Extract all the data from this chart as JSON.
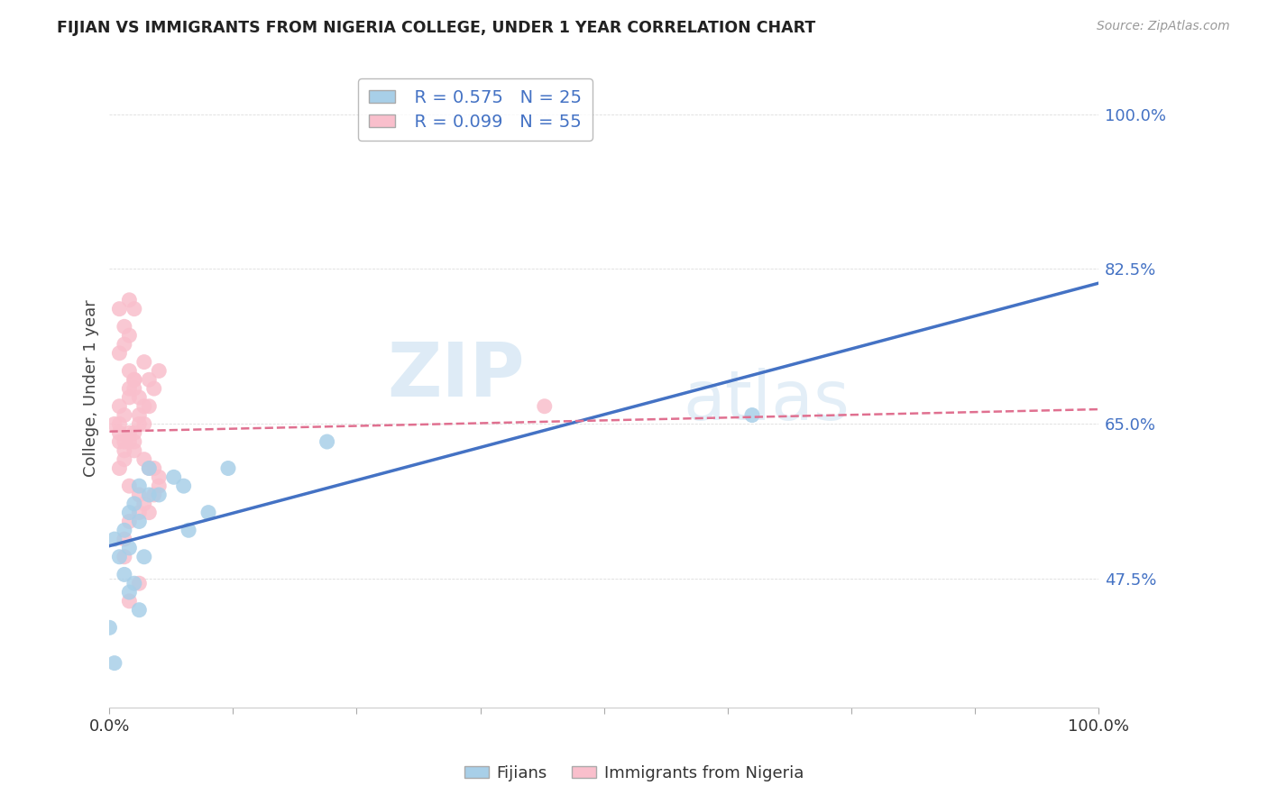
{
  "title": "FIJIAN VS IMMIGRANTS FROM NIGERIA COLLEGE, UNDER 1 YEAR CORRELATION CHART",
  "source": "Source: ZipAtlas.com",
  "ylabel": "College, Under 1 year",
  "xlim": [
    0.0,
    1.0
  ],
  "ylim": [
    0.33,
    1.05
  ],
  "x_ticks": [
    0.0,
    0.5,
    1.0
  ],
  "x_tick_labels": [
    "0.0%",
    "",
    "100.0%"
  ],
  "y_ticks_right": [
    1.0,
    0.825,
    0.65,
    0.475
  ],
  "y_tick_labels_right": [
    "100.0%",
    "82.5%",
    "65.0%",
    "47.5%"
  ],
  "fijian_color": "#a8cfe8",
  "nigeria_color": "#f9bfcc",
  "fijian_line_color": "#4472c4",
  "nigeria_line_color": "#e07090",
  "R_fijian": 0.575,
  "N_fijian": 25,
  "R_nigeria": 0.099,
  "N_nigeria": 55,
  "watermark_zip": "ZIP",
  "watermark_atlas": "atlas",
  "background_color": "#ffffff",
  "grid_color": "#dddddd",
  "title_color": "#222222",
  "axis_label_color": "#444444",
  "right_label_color": "#4472c4",
  "legend_facecolor": "#ffffff",
  "legend_edgecolor": "#aaaaaa",
  "fijian_x": [
    0.005,
    0.01,
    0.02,
    0.025,
    0.03,
    0.04,
    0.015,
    0.02,
    0.03,
    0.04,
    0.015,
    0.025,
    0.035,
    0.02,
    0.03,
    0.05,
    0.065,
    0.075,
    0.08,
    0.1,
    0.12,
    0.22,
    0.65,
    0.0,
    0.005
  ],
  "fijian_y": [
    0.52,
    0.5,
    0.55,
    0.56,
    0.58,
    0.57,
    0.53,
    0.51,
    0.54,
    0.6,
    0.48,
    0.47,
    0.5,
    0.46,
    0.44,
    0.57,
    0.59,
    0.58,
    0.53,
    0.55,
    0.6,
    0.63,
    0.66,
    0.42,
    0.38
  ],
  "nigeria_x": [
    0.005,
    0.01,
    0.015,
    0.01,
    0.02,
    0.025,
    0.01,
    0.015,
    0.02,
    0.03,
    0.02,
    0.025,
    0.035,
    0.025,
    0.01,
    0.015,
    0.02,
    0.025,
    0.035,
    0.03,
    0.04,
    0.02,
    0.03,
    0.035,
    0.04,
    0.05,
    0.045,
    0.025,
    0.01,
    0.015,
    0.03,
    0.04,
    0.05,
    0.045,
    0.035,
    0.02,
    0.015,
    0.01,
    0.02,
    0.025,
    0.035,
    0.04,
    0.05,
    0.045,
    0.03,
    0.02,
    0.015,
    0.015,
    0.02,
    0.025,
    0.01,
    0.015,
    0.44,
    0.02,
    0.03
  ],
  "nigeria_y": [
    0.65,
    0.67,
    0.66,
    0.64,
    0.68,
    0.7,
    0.63,
    0.62,
    0.69,
    0.65,
    0.71,
    0.7,
    0.72,
    0.69,
    0.6,
    0.61,
    0.63,
    0.64,
    0.65,
    0.66,
    0.67,
    0.58,
    0.57,
    0.56,
    0.55,
    0.59,
    0.6,
    0.62,
    0.73,
    0.74,
    0.68,
    0.7,
    0.71,
    0.69,
    0.67,
    0.75,
    0.76,
    0.78,
    0.64,
    0.63,
    0.61,
    0.6,
    0.58,
    0.57,
    0.55,
    0.54,
    0.52,
    0.5,
    0.79,
    0.78,
    0.65,
    0.63,
    0.67,
    0.45,
    0.47
  ]
}
